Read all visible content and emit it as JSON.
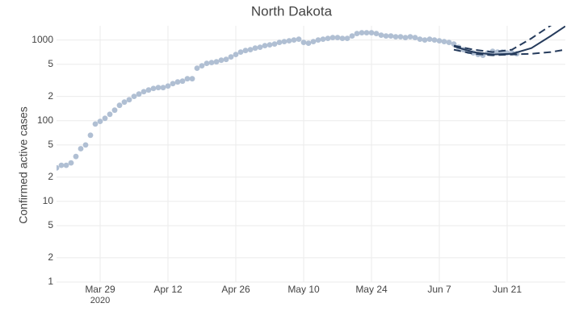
{
  "chart_data": {
    "type": "scatter",
    "title": "North Dakota",
    "y_label": "Confirmed active cases",
    "log_y": true,
    "grid": true,
    "ylim": [
      1,
      1500
    ],
    "yticks": [
      1,
      2,
      5,
      10,
      {
        "value": 20,
        "label": "2"
      },
      {
        "value": 50,
        "label": "5"
      },
      100,
      {
        "value": 200,
        "label": "2"
      },
      {
        "value": 500,
        "label": "5"
      },
      1000,
      {
        "value": 5000,
        "label": "5"
      }
    ],
    "xlim": [
      "2020-03-20",
      "2020-07-03"
    ],
    "xticks": [
      {
        "value": "2020-03-29",
        "label": "Mar 29",
        "sublabel": "2020"
      },
      {
        "value": "2020-04-12",
        "label": "Apr 12"
      },
      {
        "value": "2020-04-26",
        "label": "Apr 26"
      },
      {
        "value": "2020-05-10",
        "label": "May 10"
      },
      {
        "value": "2020-05-24",
        "label": "May 24"
      },
      {
        "value": "2020-06-07",
        "label": "Jun 7"
      },
      {
        "value": "2020-06-21",
        "label": "Jun 21"
      }
    ],
    "series": [
      {
        "mode": "markers",
        "color": "#b0bfd3",
        "x": [
          "2020-03-20",
          "2020-03-21",
          "2020-03-22",
          "2020-03-23",
          "2020-03-24",
          "2020-03-25",
          "2020-03-26",
          "2020-03-27",
          "2020-03-28",
          "2020-03-29",
          "2020-03-30",
          "2020-03-31",
          "2020-04-01",
          "2020-04-02",
          "2020-04-03",
          "2020-04-04",
          "2020-04-05",
          "2020-04-06",
          "2020-04-07",
          "2020-04-08",
          "2020-04-09",
          "2020-04-10",
          "2020-04-11",
          "2020-04-12",
          "2020-04-13",
          "2020-04-14",
          "2020-04-15",
          "2020-04-16",
          "2020-04-17",
          "2020-04-18",
          "2020-04-19",
          "2020-04-20",
          "2020-04-21",
          "2020-04-22",
          "2020-04-23",
          "2020-04-24",
          "2020-04-25",
          "2020-04-26",
          "2020-04-27",
          "2020-04-28",
          "2020-04-29",
          "2020-04-30",
          "2020-05-01",
          "2020-05-02",
          "2020-05-03",
          "2020-05-04",
          "2020-05-05",
          "2020-05-06",
          "2020-05-07",
          "2020-05-08",
          "2020-05-09",
          "2020-05-10",
          "2020-05-11",
          "2020-05-12",
          "2020-05-13",
          "2020-05-14",
          "2020-05-15",
          "2020-05-16",
          "2020-05-17",
          "2020-05-18",
          "2020-05-19",
          "2020-05-20",
          "2020-05-21",
          "2020-05-22",
          "2020-05-23",
          "2020-05-24",
          "2020-05-25",
          "2020-05-26",
          "2020-05-27",
          "2020-05-28",
          "2020-05-29",
          "2020-05-30",
          "2020-05-31",
          "2020-06-01",
          "2020-06-02",
          "2020-06-03",
          "2020-06-04",
          "2020-06-05",
          "2020-06-06",
          "2020-06-07",
          "2020-06-08",
          "2020-06-09",
          "2020-06-10",
          "2020-06-11",
          "2020-06-12",
          "2020-06-13",
          "2020-06-14",
          "2020-06-15",
          "2020-06-16",
          "2020-06-17",
          "2020-06-18",
          "2020-06-19",
          "2020-06-20",
          "2020-06-21",
          "2020-06-22",
          "2020-06-23"
        ],
        "values": [
          26,
          28,
          28,
          30,
          36,
          45,
          50,
          66,
          91,
          98,
          107,
          120,
          135,
          155,
          170,
          182,
          200,
          214,
          229,
          240,
          251,
          257,
          257,
          269,
          288,
          302,
          309,
          331,
          331,
          447,
          479,
          513,
          525,
          537,
          562,
          575,
          617,
          661,
          708,
          741,
          759,
          794,
          813,
          851,
          871,
          891,
          933,
          955,
          977,
          1000,
          1023,
          933,
          912,
          955,
          1000,
          1023,
          1047,
          1072,
          1072,
          1047,
          1047,
          1122,
          1202,
          1230,
          1230,
          1230,
          1202,
          1148,
          1122,
          1122,
          1096,
          1096,
          1072,
          1096,
          1072,
          1023,
          1000,
          1023,
          1000,
          977,
          955,
          933,
          891,
          813,
          759,
          724,
          692,
          661,
          646,
          692,
          724,
          708,
          708,
          692,
          692,
          676
        ]
      },
      {
        "mode": "lines",
        "color": "#253b5c",
        "dash": false,
        "x": [
          "2020-06-10",
          "2020-06-14",
          "2020-06-18",
          "2020-06-22",
          "2020-06-26",
          "2020-06-30",
          "2020-07-03"
        ],
        "values": [
          832,
          708,
          661,
          676,
          794,
          1122,
          1479
        ]
      },
      {
        "mode": "lines",
        "color": "#253b5c",
        "dash": true,
        "x": [
          "2020-06-10",
          "2020-06-14",
          "2020-06-18",
          "2020-06-22",
          "2020-06-26",
          "2020-06-29",
          "2020-07-03"
        ],
        "values": [
          851,
          759,
          708,
          759,
          1047,
          1380,
          2000
        ]
      },
      {
        "mode": "lines",
        "color": "#253b5c",
        "dash": true,
        "x": [
          "2020-06-10",
          "2020-06-14",
          "2020-06-18",
          "2020-06-22",
          "2020-06-26",
          "2020-06-30",
          "2020-07-03"
        ],
        "values": [
          759,
          676,
          646,
          661,
          676,
          708,
          759
        ]
      }
    ]
  }
}
